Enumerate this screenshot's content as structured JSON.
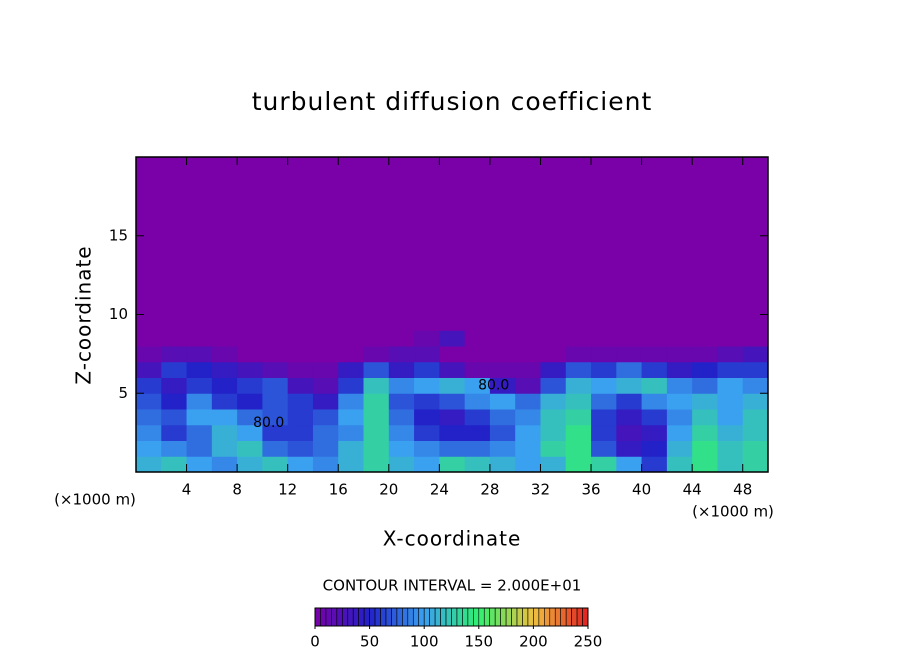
{
  "chart_data": {
    "type": "heatmap",
    "title": "turbulent diffusion coefficient",
    "x_label": "X-coordinate",
    "y_label": "Z-coordinate",
    "x_unit_label": "(×1000 m)",
    "contour_interval_label": "CONTOUR INTERVAL = 2.000E+01",
    "xlim": [
      0,
      50
    ],
    "ylim": [
      0,
      20
    ],
    "xticks": [
      4,
      8,
      12,
      16,
      20,
      24,
      28,
      32,
      36,
      40,
      44,
      48
    ],
    "yticks": [
      5,
      10,
      15
    ],
    "x": [
      1,
      3,
      5,
      7,
      9,
      11,
      13,
      15,
      17,
      19,
      21,
      23,
      25,
      27,
      29,
      31,
      33,
      35,
      37,
      39,
      41,
      43,
      45,
      47,
      49
    ],
    "y": [
      0.5,
      1.5,
      2.5,
      3.5,
      4.5,
      5.5,
      6.5,
      7.5,
      8.5,
      9.5
    ],
    "z": [
      [
        110,
        120,
        100,
        90,
        110,
        120,
        100,
        90,
        110,
        130,
        110,
        100,
        130,
        120,
        110,
        100,
        110,
        140,
        130,
        100,
        60,
        120,
        140,
        120,
        130
      ],
      [
        100,
        90,
        80,
        110,
        120,
        80,
        70,
        80,
        110,
        130,
        100,
        90,
        80,
        80,
        90,
        100,
        130,
        140,
        70,
        40,
        50,
        110,
        140,
        120,
        130
      ],
      [
        90,
        60,
        80,
        110,
        100,
        60,
        60,
        80,
        90,
        130,
        90,
        60,
        50,
        50,
        70,
        100,
        120,
        140,
        60,
        30,
        40,
        100,
        130,
        110,
        120
      ],
      [
        80,
        70,
        100,
        100,
        80,
        70,
        60,
        70,
        100,
        130,
        80,
        50,
        40,
        60,
        80,
        90,
        120,
        130,
        60,
        40,
        60,
        90,
        120,
        100,
        120
      ],
      [
        70,
        50,
        90,
        60,
        50,
        70,
        60,
        40,
        90,
        130,
        70,
        60,
        70,
        90,
        100,
        80,
        110,
        120,
        80,
        60,
        90,
        100,
        110,
        100,
        110
      ],
      [
        60,
        40,
        60,
        50,
        60,
        70,
        30,
        20,
        60,
        120,
        90,
        100,
        110,
        100,
        40,
        20,
        70,
        110,
        100,
        110,
        120,
        90,
        80,
        100,
        90
      ],
      [
        30,
        60,
        50,
        40,
        30,
        20,
        10,
        10,
        40,
        70,
        40,
        60,
        30,
        10,
        10,
        10,
        40,
        70,
        60,
        80,
        60,
        40,
        50,
        60,
        60
      ],
      [
        10,
        20,
        20,
        10,
        0,
        0,
        0,
        0,
        0,
        10,
        20,
        20,
        0,
        0,
        0,
        0,
        0,
        10,
        10,
        10,
        10,
        10,
        10,
        20,
        30
      ],
      [
        0,
        0,
        0,
        0,
        0,
        0,
        0,
        0,
        0,
        0,
        0,
        10,
        30,
        0,
        0,
        0,
        0,
        0,
        0,
        0,
        0,
        0,
        0,
        0,
        0
      ],
      [
        0,
        0,
        0,
        0,
        0,
        0,
        0,
        0,
        0,
        0,
        0,
        0,
        0,
        0,
        0,
        0,
        0,
        0,
        0,
        0,
        0,
        0,
        0,
        0,
        0
      ]
    ],
    "annotations": [
      {
        "text": "80.0",
        "x": 10.5,
        "y": 3.1
      },
      {
        "text": "80.0",
        "x": 28.3,
        "y": 5.5
      }
    ],
    "colorbar": {
      "ticks": [
        0,
        50,
        100,
        150,
        200,
        250
      ],
      "colors": [
        "#7a00a8",
        "#2222c8",
        "#3aa0f0",
        "#30f070",
        "#f0c040",
        "#e02020"
      ]
    }
  }
}
